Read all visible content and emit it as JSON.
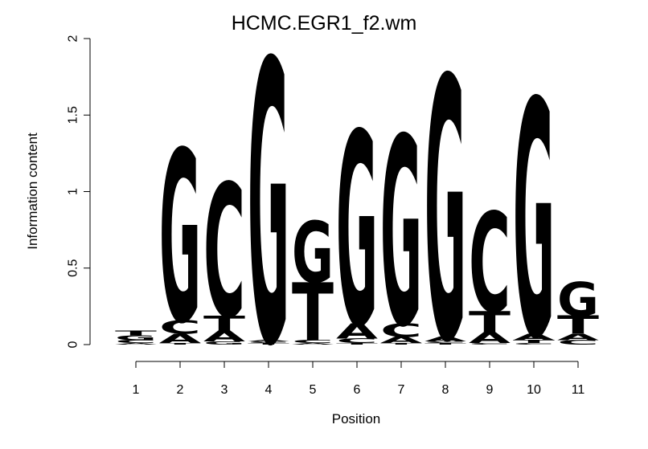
{
  "chart_data": {
    "type": "sequence_logo",
    "title": "HCMC.EGR1_f2.wm",
    "xlabel": "Position",
    "ylabel": "Information content",
    "ylim": [
      0,
      2
    ],
    "yticks": [
      0,
      0.5,
      1,
      1.5,
      2
    ],
    "ytick_labels": [
      "0",
      "0.5",
      "1",
      "1.5",
      "2"
    ],
    "positions": [
      "1",
      "2",
      "3",
      "4",
      "5",
      "6",
      "7",
      "8",
      "9",
      "10",
      "11"
    ],
    "colors": {
      "A": "#00ee00",
      "C": "#0000ee",
      "G": "#ffa500",
      "T": "#ff0000"
    },
    "stacks": [
      [
        {
          "letter": "A",
          "height": 0.01
        },
        {
          "letter": "C",
          "height": 0.02
        },
        {
          "letter": "G",
          "height": 0.03
        },
        {
          "letter": "T",
          "height": 0.03
        }
      ],
      [
        {
          "letter": "T",
          "height": 0.01
        },
        {
          "letter": "A",
          "height": 0.06
        },
        {
          "letter": "C",
          "height": 0.09
        },
        {
          "letter": "G",
          "height": 1.12
        }
      ],
      [
        {
          "letter": "G",
          "height": 0.02
        },
        {
          "letter": "A",
          "height": 0.07
        },
        {
          "letter": "T",
          "height": 0.1
        },
        {
          "letter": "C",
          "height": 0.87
        }
      ],
      [
        {
          "letter": "T",
          "height": 0.01
        },
        {
          "letter": "C",
          "height": 0.01
        },
        {
          "letter": "A",
          "height": 0.01
        },
        {
          "letter": "G",
          "height": 1.84
        }
      ],
      [
        {
          "letter": "A",
          "height": 0.01
        },
        {
          "letter": "C",
          "height": 0.02
        },
        {
          "letter": "T",
          "height": 0.38
        },
        {
          "letter": "G",
          "height": 0.4
        }
      ],
      [
        {
          "letter": "T",
          "height": 0.01
        },
        {
          "letter": "C",
          "height": 0.03
        },
        {
          "letter": "A",
          "height": 0.1
        },
        {
          "letter": "G",
          "height": 1.26
        }
      ],
      [
        {
          "letter": "T",
          "height": 0.01
        },
        {
          "letter": "A",
          "height": 0.04
        },
        {
          "letter": "C",
          "height": 0.09
        },
        {
          "letter": "G",
          "height": 1.23
        }
      ],
      [
        {
          "letter": "T",
          "height": 0.01
        },
        {
          "letter": "C",
          "height": 0.01
        },
        {
          "letter": "A",
          "height": 0.03
        },
        {
          "letter": "G",
          "height": 1.71
        }
      ],
      [
        {
          "letter": "C",
          "height": 0.01
        },
        {
          "letter": "A",
          "height": 0.07
        },
        {
          "letter": "T",
          "height": 0.14
        },
        {
          "letter": "C",
          "height": 0.65
        }
      ],
      [
        {
          "letter": "C",
          "height": 0.01
        },
        {
          "letter": "T",
          "height": 0.02
        },
        {
          "letter": "A",
          "height": 0.04
        },
        {
          "letter": "G",
          "height": 1.54
        }
      ],
      [
        {
          "letter": "C",
          "height": 0.03
        },
        {
          "letter": "A",
          "height": 0.04
        },
        {
          "letter": "T",
          "height": 0.12
        },
        {
          "letter": "G",
          "height": 0.22
        }
      ]
    ]
  }
}
